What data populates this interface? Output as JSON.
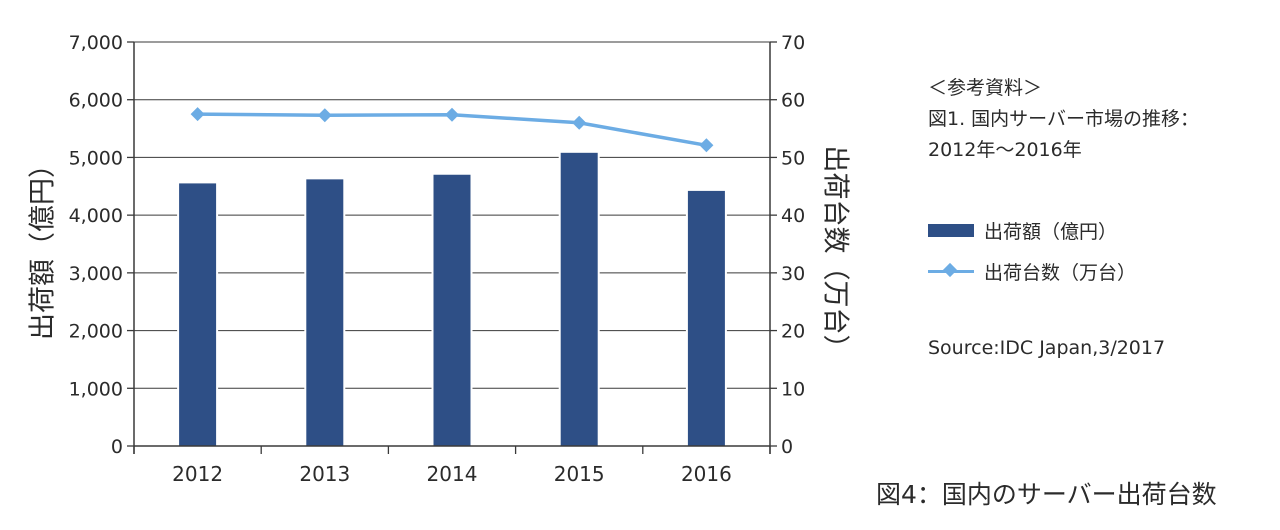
{
  "chart_data": {
    "type": "bar",
    "categories": [
      "2012",
      "2013",
      "2014",
      "2015",
      "2016"
    ],
    "series": [
      {
        "name": "出荷額（億円）",
        "type": "bar",
        "axis": "left",
        "color": "#2e4f86",
        "values": [
          4550,
          4620,
          4700,
          5080,
          4420
        ]
      },
      {
        "name": "出荷台数（万台）",
        "type": "line",
        "axis": "right",
        "color": "#6cace4",
        "values": [
          57.5,
          57.3,
          57.4,
          56,
          52.1
        ]
      }
    ],
    "ylabel": "出荷額（億円）",
    "y2label": "出荷台数（万台）",
    "ylim": [
      0,
      7000
    ],
    "y2lim": [
      0,
      70
    ],
    "yticks": [
      "0",
      "1,000",
      "2,000",
      "3,000",
      "4,000",
      "5,000",
      "6,000",
      "7,000"
    ],
    "y2ticks": [
      "0",
      "10",
      "20",
      "30",
      "40",
      "50",
      "60",
      "70"
    ],
    "grid": true,
    "legend_position": "right"
  },
  "reference": {
    "heading": "＜参考資料＞",
    "line1": "図1. 国内サーバー市場の推移：",
    "line2": "2012年〜2016年"
  },
  "source": "Source:IDC Japan,3/2017",
  "caption": "図4：国内のサーバー出荷台数"
}
